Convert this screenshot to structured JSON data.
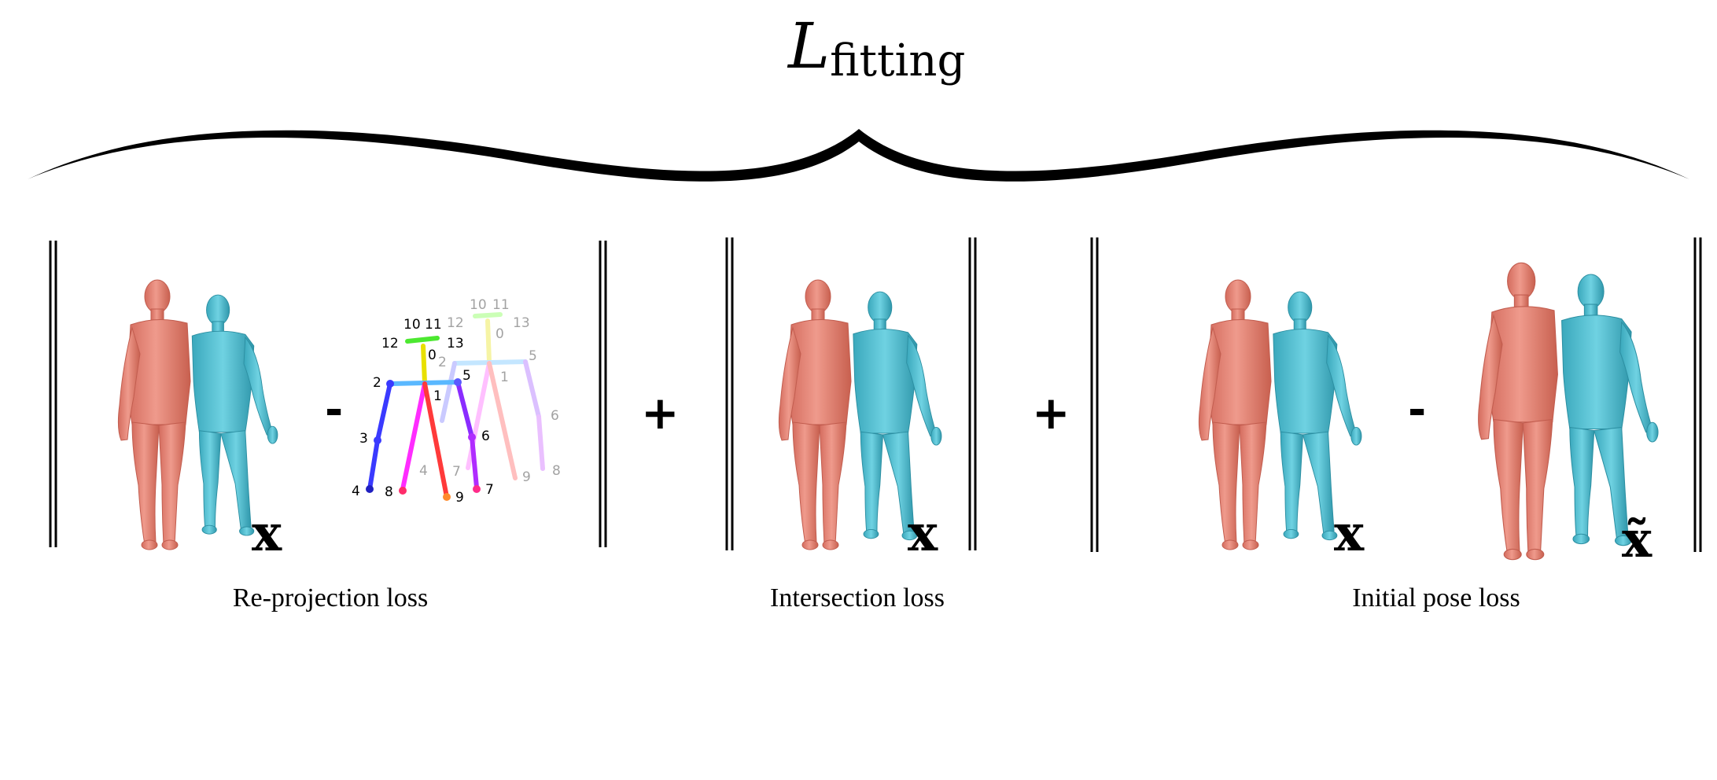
{
  "title": {
    "symbol": "L",
    "subscript": "fitting"
  },
  "captions": {
    "reprojection": "Re-projection loss",
    "intersection": "Intersection loss",
    "initial_pose": "Initial pose loss"
  },
  "operators": {
    "minus": "-",
    "plus": "+"
  },
  "variables": {
    "x": "x",
    "x_tilde": "x̃"
  },
  "colors": {
    "body_pink": "#e98a7c",
    "body_cyan": "#55c2d4",
    "brace": "#000000",
    "norm_bars": "#000000"
  },
  "keypoints_bold": [
    "0",
    "1",
    "2",
    "3",
    "4",
    "5",
    "6",
    "7",
    "8",
    "9",
    "10",
    "11",
    "12",
    "13"
  ],
  "keypoints_faded": [
    "0",
    "1",
    "2",
    "4",
    "5",
    "6",
    "7",
    "8",
    "9",
    "10",
    "11",
    "12",
    "13"
  ]
}
